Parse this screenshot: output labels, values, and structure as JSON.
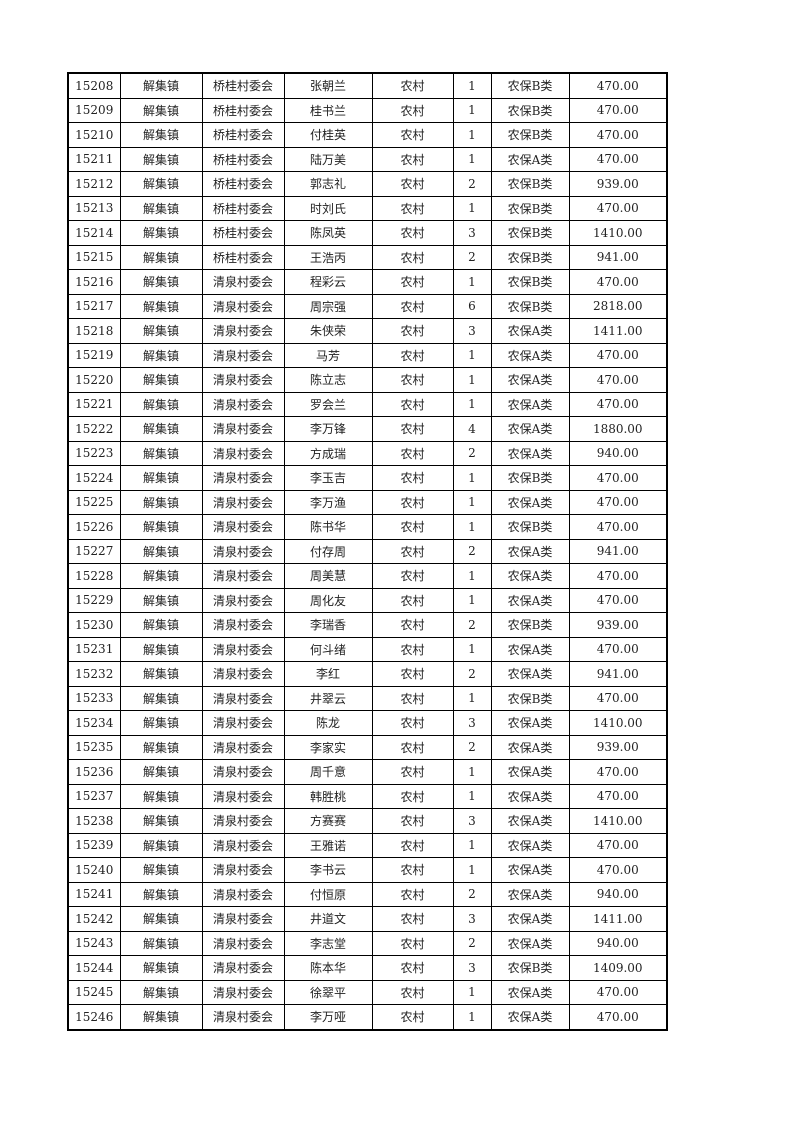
{
  "table": {
    "rows": [
      [
        "15208",
        "解集镇",
        "桥桂村委会",
        "张朝兰",
        "农村",
        "1",
        "农保B类",
        "470.00"
      ],
      [
        "15209",
        "解集镇",
        "桥桂村委会",
        "桂书兰",
        "农村",
        "1",
        "农保B类",
        "470.00"
      ],
      [
        "15210",
        "解集镇",
        "桥桂村委会",
        "付桂英",
        "农村",
        "1",
        "农保B类",
        "470.00"
      ],
      [
        "15211",
        "解集镇",
        "桥桂村委会",
        "陆万美",
        "农村",
        "1",
        "农保A类",
        "470.00"
      ],
      [
        "15212",
        "解集镇",
        "桥桂村委会",
        "郭志礼",
        "农村",
        "2",
        "农保B类",
        "939.00"
      ],
      [
        "15213",
        "解集镇",
        "桥桂村委会",
        "时刘氏",
        "农村",
        "1",
        "农保B类",
        "470.00"
      ],
      [
        "15214",
        "解集镇",
        "桥桂村委会",
        "陈凤英",
        "农村",
        "3",
        "农保B类",
        "1410.00"
      ],
      [
        "15215",
        "解集镇",
        "桥桂村委会",
        "王浩丙",
        "农村",
        "2",
        "农保B类",
        "941.00"
      ],
      [
        "15216",
        "解集镇",
        "清泉村委会",
        "程彩云",
        "农村",
        "1",
        "农保B类",
        "470.00"
      ],
      [
        "15217",
        "解集镇",
        "清泉村委会",
        "周宗强",
        "农村",
        "6",
        "农保B类",
        "2818.00"
      ],
      [
        "15218",
        "解集镇",
        "清泉村委会",
        "朱侠荣",
        "农村",
        "3",
        "农保A类",
        "1411.00"
      ],
      [
        "15219",
        "解集镇",
        "清泉村委会",
        "马芳",
        "农村",
        "1",
        "农保A类",
        "470.00"
      ],
      [
        "15220",
        "解集镇",
        "清泉村委会",
        "陈立志",
        "农村",
        "1",
        "农保A类",
        "470.00"
      ],
      [
        "15221",
        "解集镇",
        "清泉村委会",
        "罗会兰",
        "农村",
        "1",
        "农保A类",
        "470.00"
      ],
      [
        "15222",
        "解集镇",
        "清泉村委会",
        "李万锋",
        "农村",
        "4",
        "农保A类",
        "1880.00"
      ],
      [
        "15223",
        "解集镇",
        "清泉村委会",
        "方成瑞",
        "农村",
        "2",
        "农保A类",
        "940.00"
      ],
      [
        "15224",
        "解集镇",
        "清泉村委会",
        "李玉吉",
        "农村",
        "1",
        "农保B类",
        "470.00"
      ],
      [
        "15225",
        "解集镇",
        "清泉村委会",
        "李万渔",
        "农村",
        "1",
        "农保A类",
        "470.00"
      ],
      [
        "15226",
        "解集镇",
        "清泉村委会",
        "陈书华",
        "农村",
        "1",
        "农保B类",
        "470.00"
      ],
      [
        "15227",
        "解集镇",
        "清泉村委会",
        "付存周",
        "农村",
        "2",
        "农保A类",
        "941.00"
      ],
      [
        "15228",
        "解集镇",
        "清泉村委会",
        "周美慧",
        "农村",
        "1",
        "农保A类",
        "470.00"
      ],
      [
        "15229",
        "解集镇",
        "清泉村委会",
        "周化友",
        "农村",
        "1",
        "农保A类",
        "470.00"
      ],
      [
        "15230",
        "解集镇",
        "清泉村委会",
        "李瑞香",
        "农村",
        "2",
        "农保B类",
        "939.00"
      ],
      [
        "15231",
        "解集镇",
        "清泉村委会",
        "何斗绪",
        "农村",
        "1",
        "农保A类",
        "470.00"
      ],
      [
        "15232",
        "解集镇",
        "清泉村委会",
        "李红",
        "农村",
        "2",
        "农保A类",
        "941.00"
      ],
      [
        "15233",
        "解集镇",
        "清泉村委会",
        "井翠云",
        "农村",
        "1",
        "农保B类",
        "470.00"
      ],
      [
        "15234",
        "解集镇",
        "清泉村委会",
        "陈龙",
        "农村",
        "3",
        "农保A类",
        "1410.00"
      ],
      [
        "15235",
        "解集镇",
        "清泉村委会",
        "李家实",
        "农村",
        "2",
        "农保A类",
        "939.00"
      ],
      [
        "15236",
        "解集镇",
        "清泉村委会",
        "周千意",
        "农村",
        "1",
        "农保A类",
        "470.00"
      ],
      [
        "15237",
        "解集镇",
        "清泉村委会",
        "韩胜桃",
        "农村",
        "1",
        "农保A类",
        "470.00"
      ],
      [
        "15238",
        "解集镇",
        "清泉村委会",
        "方赛赛",
        "农村",
        "3",
        "农保A类",
        "1410.00"
      ],
      [
        "15239",
        "解集镇",
        "清泉村委会",
        "王雅诺",
        "农村",
        "1",
        "农保A类",
        "470.00"
      ],
      [
        "15240",
        "解集镇",
        "清泉村委会",
        "李书云",
        "农村",
        "1",
        "农保A类",
        "470.00"
      ],
      [
        "15241",
        "解集镇",
        "清泉村委会",
        "付恒原",
        "农村",
        "2",
        "农保A类",
        "940.00"
      ],
      [
        "15242",
        "解集镇",
        "清泉村委会",
        "井道文",
        "农村",
        "3",
        "农保A类",
        "1411.00"
      ],
      [
        "15243",
        "解集镇",
        "清泉村委会",
        "李志堂",
        "农村",
        "2",
        "农保A类",
        "940.00"
      ],
      [
        "15244",
        "解集镇",
        "清泉村委会",
        "陈本华",
        "农村",
        "3",
        "农保B类",
        "1409.00"
      ],
      [
        "15245",
        "解集镇",
        "清泉村委会",
        "徐翠平",
        "农村",
        "1",
        "农保A类",
        "470.00"
      ],
      [
        "15246",
        "解集镇",
        "清泉村委会",
        "李万哑",
        "农村",
        "1",
        "农保A类",
        "470.00"
      ]
    ]
  }
}
